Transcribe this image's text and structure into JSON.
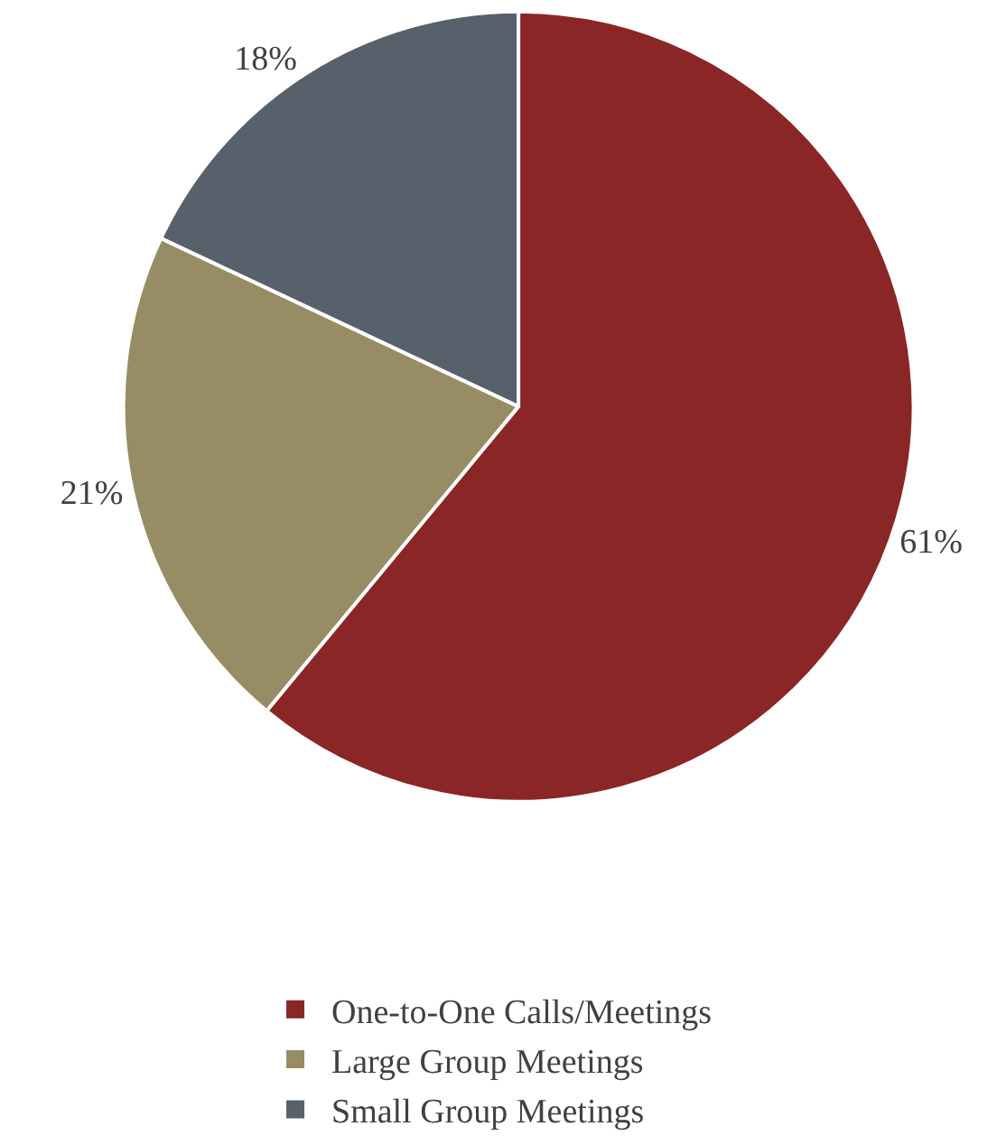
{
  "chart_data": {
    "type": "pie",
    "categories": [
      "One-to-One Calls/Meetings",
      "Large Group Meetings",
      "Small Group Meetings"
    ],
    "values": [
      61,
      21,
      18
    ],
    "colors": [
      "#8b2627",
      "#978c63",
      "#57616c"
    ],
    "value_labels": [
      "61%",
      "21%",
      "18%"
    ],
    "legend": "bottom"
  }
}
